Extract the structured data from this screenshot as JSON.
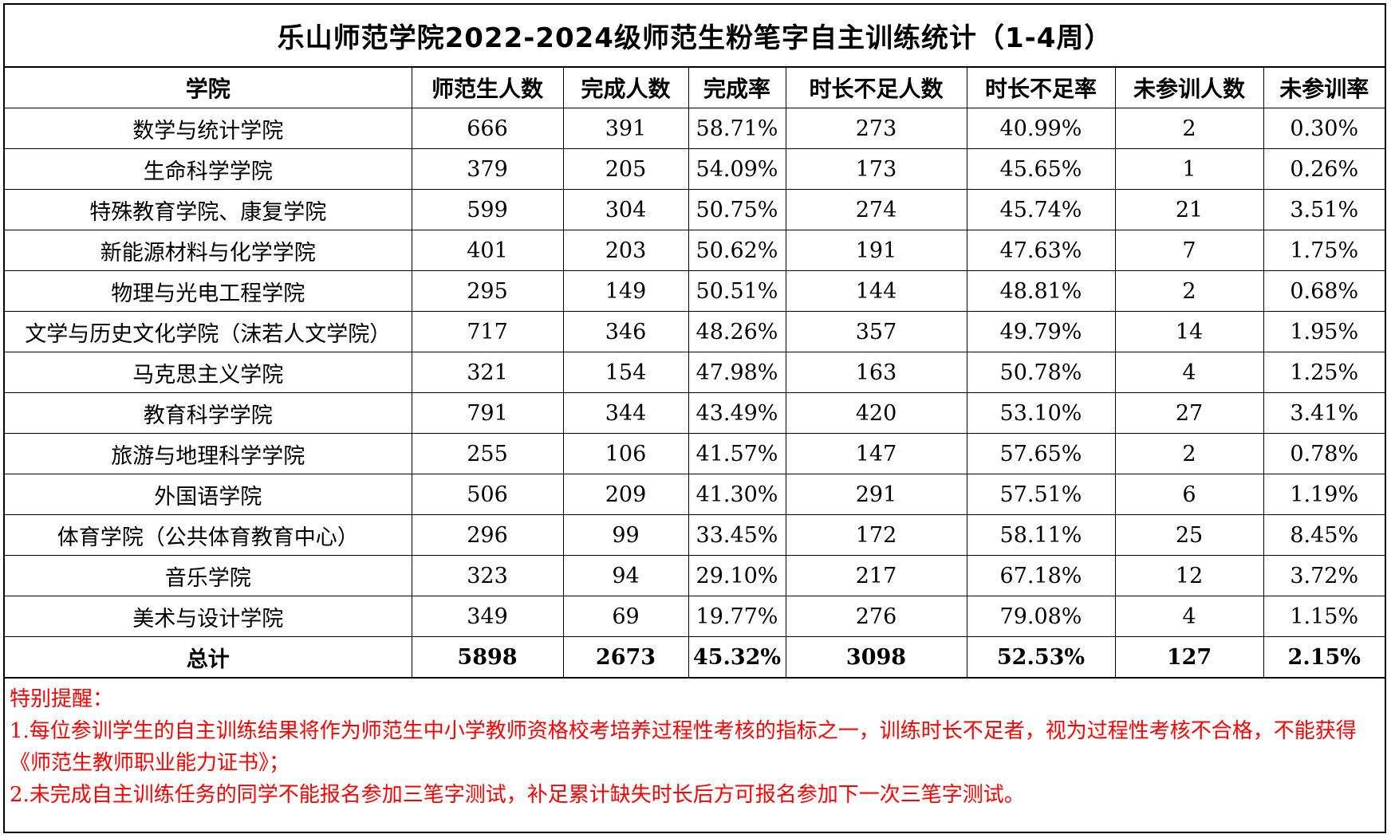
{
  "title": "乐山师范学院2022-2024级师范生粉笔字自主训练统计（1-4周）",
  "headers": [
    "学院",
    "师范生人数",
    "完成人数",
    "完成率",
    "时长不足人数",
    "时长不足率",
    "未参训人数",
    "未参训率"
  ],
  "rows": [
    [
      "数学与统计学院",
      "666",
      "391",
      "58.71%",
      "273",
      "40.99%",
      "2",
      "0.30%"
    ],
    [
      "生命科学学院",
      "379",
      "205",
      "54.09%",
      "173",
      "45.65%",
      "1",
      "0.26%"
    ],
    [
      "特殊教育学院、康复学院",
      "599",
      "304",
      "50.75%",
      "274",
      "45.74%",
      "21",
      "3.51%"
    ],
    [
      "新能源材料与化学学院",
      "401",
      "203",
      "50.62%",
      "191",
      "47.63%",
      "7",
      "1.75%"
    ],
    [
      "物理与光电工程学院",
      "295",
      "149",
      "50.51%",
      "144",
      "48.81%",
      "2",
      "0.68%"
    ],
    [
      "文学与历史文化学院（沫若人文学院）",
      "717",
      "346",
      "48.26%",
      "357",
      "49.79%",
      "14",
      "1.95%"
    ],
    [
      "马克思主义学院",
      "321",
      "154",
      "47.98%",
      "163",
      "50.78%",
      "4",
      "1.25%"
    ],
    [
      "教育科学学院",
      "791",
      "344",
      "43.49%",
      "420",
      "53.10%",
      "27",
      "3.41%"
    ],
    [
      "旅游与地理科学学院",
      "255",
      "106",
      "41.57%",
      "147",
      "57.65%",
      "2",
      "0.78%"
    ],
    [
      "外国语学院",
      "506",
      "209",
      "41.30%",
      "291",
      "57.51%",
      "6",
      "1.19%"
    ],
    [
      "体育学院（公共体育教育中心）",
      "296",
      "99",
      "33.45%",
      "172",
      "58.11%",
      "25",
      "8.45%"
    ],
    [
      "音乐学院",
      "323",
      "94",
      "29.10%",
      "217",
      "67.18%",
      "12",
      "3.72%"
    ],
    [
      "美术与设计学院",
      "349",
      "69",
      "19.77%",
      "276",
      "79.08%",
      "4",
      "1.15%"
    ]
  ],
  "total": [
    "总计",
    "5898",
    "2673",
    "45.32%",
    "3098",
    "52.53%",
    "127",
    "2.15%"
  ],
  "notes": {
    "heading": "特别提醒：",
    "item1": "1.每位参训学生的自主训练结果将作为师范生中小学教师资格校考培养过程性考核的指标之一，训练时长不足者，视为过程性考核不合格，不能获得《师范生教师职业能力证书》；",
    "item2": "2.未完成自主训练任务的同学不能报名参加三笔字测试，补足累计缺失时长后方可报名参加下一次三笔字测试。"
  },
  "colors": {
    "notes_text": "#ff0000",
    "border": "#000000"
  }
}
